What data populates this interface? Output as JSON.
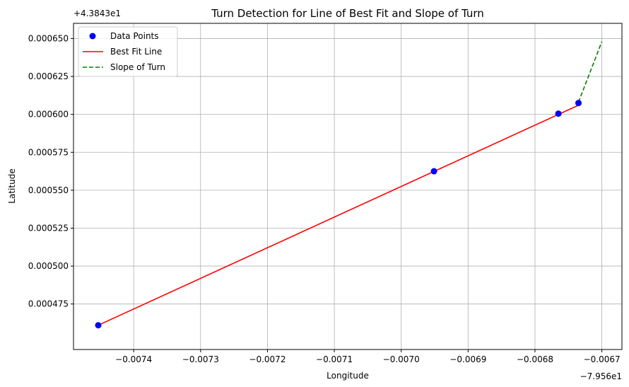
{
  "chart_data": {
    "type": "scatter",
    "title": "Turn Detection for Line of Best Fit and Slope of Turn",
    "xlabel": "Longitude",
    "ylabel": "Latitude",
    "x_offset_label": "−7.956e1",
    "y_offset_label": "+4.3843e1",
    "x_offset": -79.56,
    "y_offset": 43.843,
    "xlim": [
      -0.00749,
      -0.00667
    ],
    "ylim": [
      0.000445,
      0.00066
    ],
    "x_ticks": [
      -0.0074,
      -0.0073,
      -0.0072,
      -0.0071,
      -0.007,
      -0.0069,
      -0.0068,
      -0.0067
    ],
    "x_tick_labels": [
      "−0.0074",
      "−0.0073",
      "−0.0072",
      "−0.0071",
      "−0.0070",
      "−0.0069",
      "−0.0068",
      "−0.0067"
    ],
    "y_ticks": [
      0.000475,
      0.0005,
      0.000525,
      0.00055,
      0.000575,
      0.0006,
      0.000625,
      0.00065
    ],
    "y_tick_labels": [
      "0.000475",
      "0.000500",
      "0.000525",
      "0.000550",
      "0.000575",
      "0.000600",
      "0.000625",
      "0.000650"
    ],
    "grid": true,
    "legend_position": "top-left",
    "series": [
      {
        "name": "Data Points",
        "kind": "scatter",
        "color": "#0000ff",
        "points": [
          {
            "x": -0.007453,
            "y": 0.000461
          },
          {
            "x": -0.006951,
            "y": 0.0005625
          },
          {
            "x": -0.006765,
            "y": 0.0006005
          },
          {
            "x": -0.006735,
            "y": 0.0006075
          }
        ]
      },
      {
        "name": "Best Fit Line",
        "kind": "line",
        "color": "#ff0000",
        "dash": "solid",
        "points": [
          {
            "x": -0.007453,
            "y": 0.000461
          },
          {
            "x": -0.006735,
            "y": 0.000606
          }
        ]
      },
      {
        "name": "Slope of Turn",
        "kind": "line",
        "color": "#008000",
        "dash": "dashed",
        "points": [
          {
            "x": -0.006735,
            "y": 0.000608
          },
          {
            "x": -0.0067,
            "y": 0.000648
          }
        ]
      }
    ]
  }
}
